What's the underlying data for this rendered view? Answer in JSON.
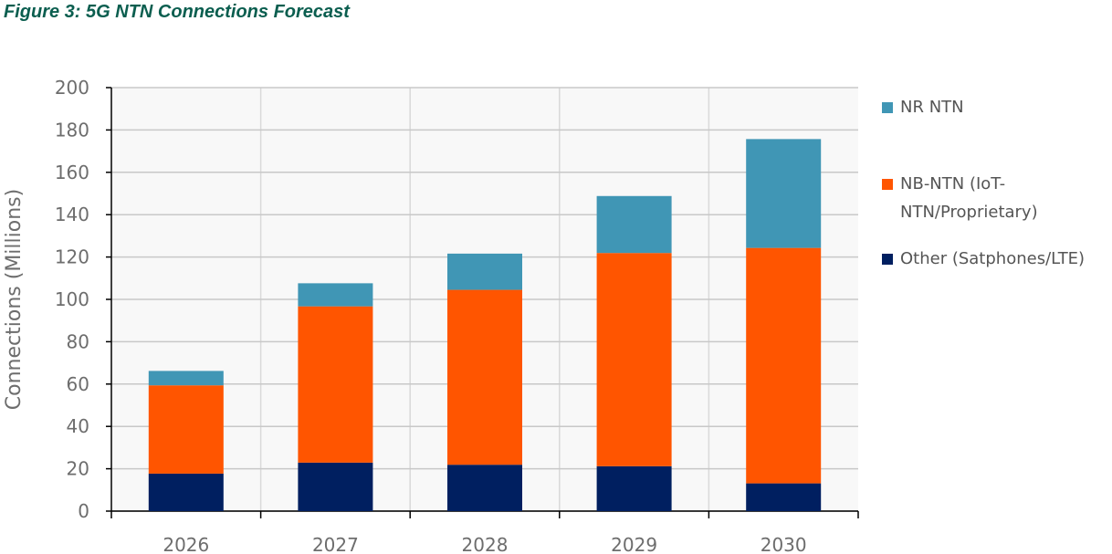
{
  "chart_data": {
    "type": "bar",
    "stacked": true,
    "title": "Figure 3: 5G NTN Connections Forecast",
    "xlabel": "",
    "ylabel": "Connections (Millions)",
    "ylim": [
      0,
      200
    ],
    "yticks": [
      0,
      20,
      40,
      60,
      80,
      100,
      120,
      140,
      160,
      180,
      200
    ],
    "categories": [
      "2026",
      "2027",
      "2028",
      "2029",
      "2030"
    ],
    "grid": true,
    "legend_position": "right",
    "series": [
      {
        "name": "Other (Satphones/LTE)",
        "color": "#001f60",
        "values": [
          17.7,
          22.9,
          21.9,
          21.2,
          13.1
        ]
      },
      {
        "name": "NB-NTN (IoT-NTN/Proprietary)",
        "color": "#ff5500",
        "values": [
          41.7,
          73.8,
          82.6,
          100.7,
          111.2
        ]
      },
      {
        "name": "NR NTN",
        "color": "#4096b5",
        "values": [
          6.8,
          10.9,
          17.1,
          26.9,
          51.4
        ]
      }
    ],
    "legend": [
      {
        "lines": [
          "NR NTN"
        ],
        "series": 2
      },
      {
        "lines": [
          "NB-NTN (IoT-",
          "NTN/Proprietary)"
        ],
        "series": 1
      },
      {
        "lines": [
          "Other (Satphones/LTE)"
        ],
        "series": 0
      }
    ]
  }
}
